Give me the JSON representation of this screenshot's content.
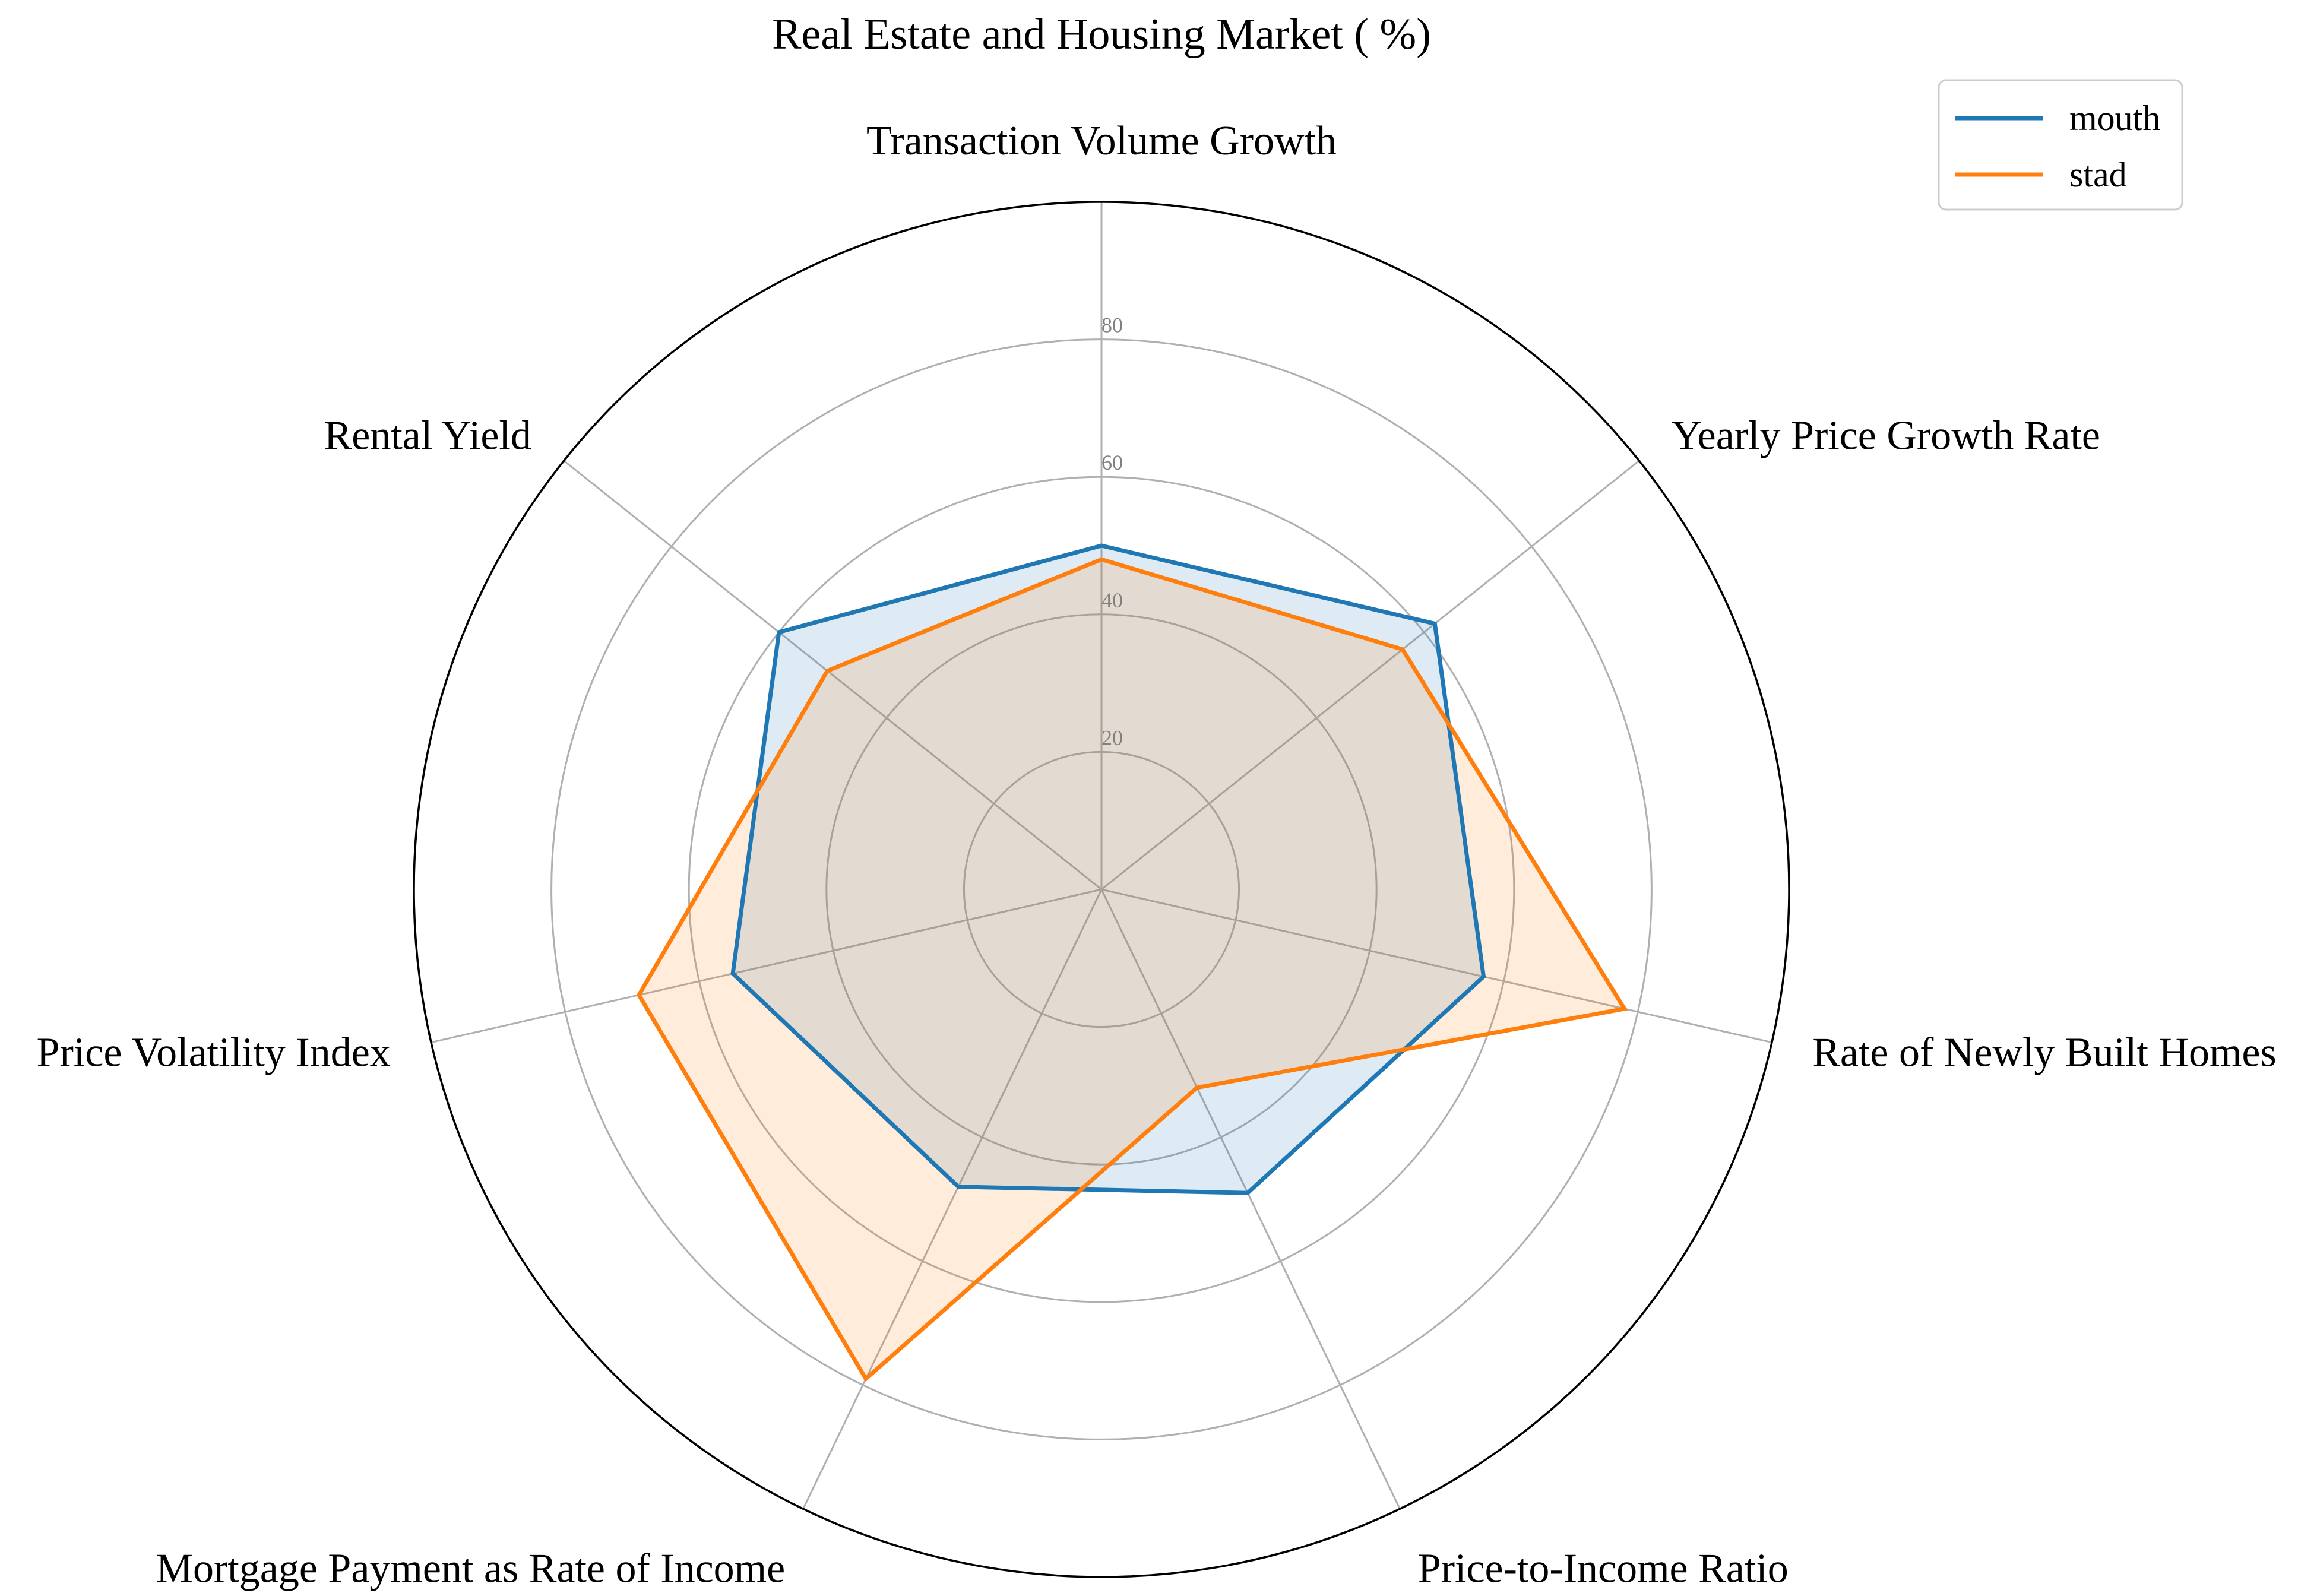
{
  "chart_data": {
    "type": "radar",
    "title": "Real Estate and Housing Market ( %)",
    "categories": [
      "Transaction Volume Growth",
      "Yearly Price Growth Rate",
      "Rate of Newly Built Homes",
      "Price-to-Income Ratio",
      "Mortgage Payment as Rate of Income",
      "Price Volatility Index",
      "Rental Yield"
    ],
    "radial_ticks": [
      20,
      40,
      60,
      80
    ],
    "rlim": [
      0,
      100
    ],
    "grid": true,
    "legend_position": "top-right",
    "series": [
      {
        "name": "mouth",
        "color": "#1f77b4",
        "values": [
          50,
          62,
          57,
          49,
          48,
          55,
          60
        ]
      },
      {
        "name": "stad",
        "color": "#ff7f0e",
        "values": [
          48,
          56,
          78,
          32,
          79,
          69,
          51
        ]
      }
    ]
  }
}
